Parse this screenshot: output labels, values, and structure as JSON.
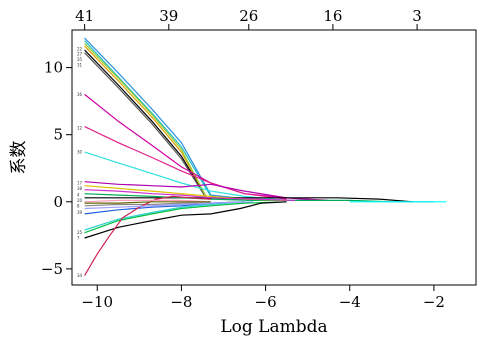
{
  "chart_data": {
    "type": "line",
    "title": "",
    "xlabel": "Log Lambda",
    "ylabel": "系数",
    "xlim": [
      -10.6,
      -1.0
    ],
    "ylim": [
      -6.2,
      12.8
    ],
    "x_ticks": [
      -10,
      -8,
      -6,
      -4,
      -2
    ],
    "x_tick_labels": [
      "−10",
      "−8",
      "−6",
      "−4",
      "−2"
    ],
    "y_ticks": [
      -5,
      0,
      5,
      10
    ],
    "y_tick_labels": [
      "−5",
      "0",
      "5",
      "10"
    ],
    "top_axis": {
      "ticks": [
        -10.3,
        -8.3,
        -6.4,
        -4.4,
        -2.4
      ],
      "labels": [
        "41",
        "39",
        "26",
        "16",
        "3"
      ]
    },
    "grid": false,
    "legend": "none",
    "series": [
      {
        "color": "#2b8fe0",
        "x": [
          -10.3,
          -9.5,
          -8.7,
          -8.0,
          -7.3,
          -6.4,
          -5.5
        ],
        "y": [
          12.2,
          9.6,
          6.9,
          4.4,
          0.5,
          0.2,
          0.1
        ]
      },
      {
        "color": "#1fbfbf",
        "x": [
          -10.3,
          -9.5,
          -8.7,
          -8.0,
          -7.3,
          -6.4
        ],
        "y": [
          12.0,
          9.3,
          6.6,
          4.1,
          0.4,
          0.1
        ]
      },
      {
        "color": "#000000",
        "x": [
          -10.3,
          -9.5,
          -8.7,
          -8.0,
          -7.4,
          -6.5,
          -5.6
        ],
        "y": [
          11.3,
          8.7,
          6.0,
          3.4,
          0.3,
          0.2,
          0.1
        ]
      },
      {
        "color": "#555555",
        "x": [
          -10.3,
          -9.5,
          -8.7,
          -8.0,
          -7.4
        ],
        "y": [
          11.1,
          8.5,
          5.8,
          3.2,
          0.2
        ]
      },
      {
        "color": "#e0a000",
        "x": [
          -10.3,
          -9.5,
          -8.7,
          -8.0,
          -7.4
        ],
        "y": [
          11.6,
          9.0,
          6.3,
          3.7,
          0.3
        ]
      },
      {
        "color": "#9acd32",
        "x": [
          -10.3,
          -9.5,
          -8.7,
          -8.0,
          -7.4
        ],
        "y": [
          11.8,
          9.2,
          6.5,
          3.9,
          0.3
        ]
      },
      {
        "color": "#d000a0",
        "x": [
          -10.3,
          -9.5,
          -8.7,
          -8.0,
          -7.3,
          -6.5,
          -5.5,
          -4.5
        ],
        "y": [
          8.0,
          6.0,
          4.2,
          2.6,
          1.4,
          0.6,
          0.3,
          0.1
        ]
      },
      {
        "color": "#e0208a",
        "x": [
          -10.3,
          -9.5,
          -8.7,
          -8.0,
          -7.3,
          -6.5,
          -5.5
        ],
        "y": [
          5.6,
          4.4,
          3.3,
          2.3,
          1.4,
          0.6,
          0.2
        ]
      },
      {
        "color": "#30e0e0",
        "x": [
          -10.3,
          -9.5,
          -8.7,
          -8.0,
          -7.3,
          -6.5,
          -5.5
        ],
        "y": [
          3.7,
          2.9,
          2.1,
          1.4,
          0.8,
          0.4,
          0.1
        ]
      },
      {
        "color": "#b000b0",
        "x": [
          -10.3,
          -9.5,
          -8.7,
          -8.0,
          -7.3,
          -6.5,
          -5.5,
          -4.8
        ],
        "y": [
          1.5,
          1.3,
          1.2,
          1.1,
          1.3,
          0.8,
          0.3,
          0.1
        ]
      },
      {
        "color": "#000000",
        "x": [
          -10.3,
          -9.5,
          -8.7,
          -8.0,
          -7.3,
          -6.3,
          -5.3,
          -4.3,
          -3.3,
          -2.5
        ],
        "y": [
          0.3,
          0.3,
          0.3,
          0.3,
          0.3,
          0.3,
          0.3,
          0.3,
          0.2,
          0.0
        ]
      },
      {
        "color": "#00aa55",
        "x": [
          -10.3,
          -9.5,
          -8.7,
          -8.0,
          -7.3,
          -6.3,
          -5.0,
          -4.0,
          -3.0,
          -2.0
        ],
        "y": [
          0.6,
          0.5,
          0.4,
          0.3,
          0.2,
          0.1,
          0.1,
          0.1,
          0.0,
          0.0
        ]
      },
      {
        "color": "#e0c000",
        "x": [
          -10.3,
          -9.5,
          -8.7,
          -8.0,
          -7.3,
          -6.5,
          -5.5
        ],
        "y": [
          1.2,
          1.0,
          0.8,
          0.6,
          0.4,
          0.2,
          0.1
        ]
      },
      {
        "color": "#888888",
        "x": [
          -10.3,
          -9.5,
          -8.7,
          -8.0,
          -7.3,
          -6.5
        ],
        "y": [
          -0.3,
          -0.2,
          -0.2,
          -0.1,
          -0.1,
          0.0
        ]
      },
      {
        "color": "#2060e0",
        "x": [
          -10.3,
          -9.5,
          -8.7,
          -8.0,
          -7.3,
          -6.5
        ],
        "y": [
          -0.9,
          -0.6,
          -0.4,
          -0.3,
          -0.1,
          0.0
        ]
      },
      {
        "color": "#00c040",
        "x": [
          -10.3,
          -9.5,
          -8.7,
          -8.0,
          -7.3,
          -6.5,
          -5.5
        ],
        "y": [
          -2.3,
          -1.4,
          -0.9,
          -0.5,
          -0.3,
          -0.1,
          0.0
        ]
      },
      {
        "color": "#30d0d0",
        "x": [
          -10.3,
          -9.5,
          -8.7,
          -8.0,
          -7.3,
          -6.5
        ],
        "y": [
          -2.1,
          -1.3,
          -0.8,
          -0.4,
          -0.2,
          0.0
        ]
      },
      {
        "color": "#000000",
        "x": [
          -10.3,
          -9.5,
          -8.7,
          -8.0,
          -7.3,
          -6.6,
          -6.1,
          -5.5
        ],
        "y": [
          -2.7,
          -1.9,
          -1.4,
          -1.0,
          -0.9,
          -0.5,
          -0.1,
          0.0
        ]
      },
      {
        "color": "#d02050",
        "x": [
          -10.3,
          -10.0,
          -9.7,
          -9.4,
          -9.0,
          -8.6,
          -8.2,
          -7.8,
          -7.3
        ],
        "y": [
          -5.5,
          -3.9,
          -2.5,
          -1.2,
          -0.4,
          0.2,
          0.4,
          0.3,
          0.2
        ]
      },
      {
        "color": "#ffa0c0",
        "x": [
          -10.3,
          -9.5,
          -8.7,
          -8.0,
          -7.3
        ],
        "y": [
          0.0,
          0.1,
          0.1,
          0.1,
          0.0
        ]
      },
      {
        "color": "#a0a0ff",
        "x": [
          -10.3,
          -9.5,
          -8.7,
          -8.0,
          -7.3,
          -6.3
        ],
        "y": [
          -0.5,
          -0.4,
          -0.3,
          -0.2,
          -0.1,
          0.0
        ]
      },
      {
        "color": "#00ffff",
        "x": [
          -4.0,
          -3.0,
          -2.0,
          -1.7
        ],
        "y": [
          0.0,
          0.0,
          0.0,
          0.0
        ]
      },
      {
        "color": "#cc33cc",
        "x": [
          -10.3,
          -9.5,
          -8.7,
          -8.0,
          -7.3,
          -6.3,
          -5.3
        ],
        "y": [
          0.9,
          0.8,
          0.6,
          0.5,
          0.3,
          0.2,
          0.1
        ]
      },
      {
        "color": "#666600",
        "x": [
          -10.3,
          -9.5,
          -8.7,
          -8.0,
          -7.3
        ],
        "y": [
          -0.1,
          -0.1,
          0.0,
          0.0,
          0.0
        ]
      }
    ],
    "variable_labels": [
      {
        "y": 11.4,
        "text": "22"
      },
      {
        "y": 11.0,
        "text": "27"
      },
      {
        "y": 10.6,
        "text": "35"
      },
      {
        "y": 10.2,
        "text": "31"
      },
      {
        "y": 8.0,
        "text": "36"
      },
      {
        "y": 5.5,
        "text": "12"
      },
      {
        "y": 3.7,
        "text": "30"
      },
      {
        "y": 1.4,
        "text": "17"
      },
      {
        "y": 1.0,
        "text": "38"
      },
      {
        "y": 0.5,
        "text": "4"
      },
      {
        "y": 0.1,
        "text": "20"
      },
      {
        "y": -0.3,
        "text": "8"
      },
      {
        "y": -0.8,
        "text": "39"
      },
      {
        "y": -2.3,
        "text": "25"
      },
      {
        "y": -2.7,
        "text": "7"
      },
      {
        "y": -5.5,
        "text": "34"
      }
    ]
  }
}
